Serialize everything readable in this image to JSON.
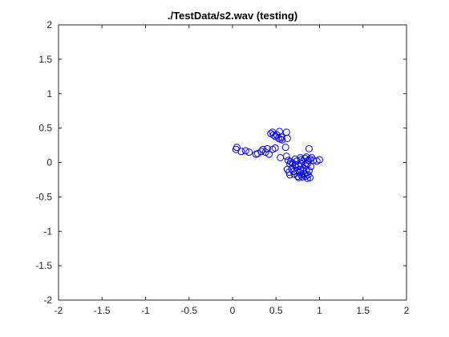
{
  "chart_data": {
    "type": "scatter",
    "title": "./TestData/s2.wav (testing)",
    "xlabel": "",
    "ylabel": "",
    "xlim": [
      -2,
      2
    ],
    "ylim": [
      -2,
      2
    ],
    "xticks": [
      -2,
      -1.5,
      -1,
      -0.5,
      0,
      0.5,
      1,
      1.5,
      2
    ],
    "yticks": [
      -2,
      -1.5,
      -1,
      -0.5,
      0,
      0.5,
      1,
      1.5,
      2
    ],
    "xtick_labels": [
      "-2",
      "-1.5",
      "-1",
      "-0.5",
      "0",
      "0.5",
      "1",
      "1.5",
      "2"
    ],
    "ytick_labels": [
      "-2",
      "-1.5",
      "-1",
      "-0.5",
      "0",
      "0.5",
      "1",
      "1.5",
      "2"
    ],
    "grid": false,
    "marker": "circle-open",
    "color": "#0000ff",
    "points": [
      [
        0.04,
        0.19
      ],
      [
        0.05,
        0.22
      ],
      [
        0.1,
        0.16
      ],
      [
        0.15,
        0.17
      ],
      [
        0.19,
        0.15
      ],
      [
        0.27,
        0.12
      ],
      [
        0.29,
        0.13
      ],
      [
        0.33,
        0.16
      ],
      [
        0.35,
        0.19
      ],
      [
        0.38,
        0.15
      ],
      [
        0.42,
        0.12
      ],
      [
        0.4,
        0.2
      ],
      [
        0.46,
        0.19
      ],
      [
        0.49,
        0.21
      ],
      [
        0.44,
        0.42
      ],
      [
        0.46,
        0.44
      ],
      [
        0.47,
        0.4
      ],
      [
        0.49,
        0.38
      ],
      [
        0.51,
        0.4
      ],
      [
        0.54,
        0.45
      ],
      [
        0.53,
        0.35
      ],
      [
        0.55,
        0.34
      ],
      [
        0.57,
        0.33
      ],
      [
        0.56,
        0.37
      ],
      [
        0.62,
        0.44
      ],
      [
        0.63,
        0.35
      ],
      [
        0.61,
        0.22
      ],
      [
        0.55,
        0.07
      ],
      [
        0.62,
        0.09
      ],
      [
        0.64,
        0.03
      ],
      [
        0.66,
        -0.02
      ],
      [
        0.69,
        -0.01
      ],
      [
        0.72,
        0.05
      ],
      [
        0.74,
        0.02
      ],
      [
        0.76,
        -0.05
      ],
      [
        0.78,
        0.07
      ],
      [
        0.79,
        0.04
      ],
      [
        0.81,
        0.02
      ],
      [
        0.83,
        0.06
      ],
      [
        0.85,
        0.08
      ],
      [
        0.87,
        0.03
      ],
      [
        0.89,
        0.05
      ],
      [
        0.91,
        0.07
      ],
      [
        0.93,
        0.03
      ],
      [
        0.97,
        0.02
      ],
      [
        1.0,
        0.04
      ],
      [
        0.88,
        0.2
      ],
      [
        0.63,
        -0.1
      ],
      [
        0.65,
        -0.14
      ],
      [
        0.66,
        -0.18
      ],
      [
        0.68,
        -0.09
      ],
      [
        0.7,
        -0.13
      ],
      [
        0.71,
        -0.17
      ],
      [
        0.73,
        -0.07
      ],
      [
        0.74,
        -0.12
      ],
      [
        0.75,
        -0.2
      ],
      [
        0.76,
        -0.22
      ],
      [
        0.77,
        -0.15
      ],
      [
        0.78,
        -0.1
      ],
      [
        0.79,
        -0.18
      ],
      [
        0.8,
        -0.21
      ],
      [
        0.81,
        -0.13
      ],
      [
        0.82,
        -0.08
      ],
      [
        0.83,
        -0.16
      ],
      [
        0.84,
        -0.2
      ],
      [
        0.85,
        -0.11
      ],
      [
        0.86,
        -0.23
      ],
      [
        0.87,
        -0.18
      ],
      [
        0.88,
        -0.12
      ],
      [
        0.89,
        -0.22
      ],
      [
        0.84,
        -0.04
      ],
      [
        0.79,
        -0.02
      ],
      [
        0.72,
        -0.03
      ],
      [
        0.67,
        0.01
      ],
      [
        0.9,
        -0.06
      ],
      [
        0.86,
        -0.02
      ]
    ]
  }
}
